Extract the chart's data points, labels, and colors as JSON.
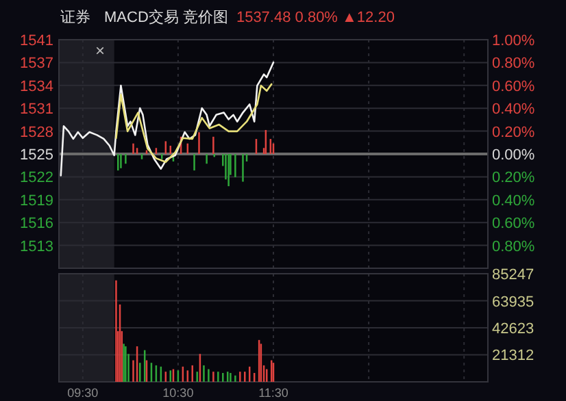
{
  "chart_data": [
    {
      "type": "line",
      "title": "证券",
      "subtitle": "MACD交易 竞价图",
      "annotations": [
        "1537.48 0.80% ▲12.20",
        "×"
      ],
      "xlim": [
        9.25,
        13.75
      ],
      "xticks": [
        9.5,
        10.5,
        11.5,
        12.5,
        13.5
      ],
      "tick_labels": "y",
      "ylim": [
        1510.03,
        1540.53
      ],
      "yticks": [
        {
          "value": 1540.53,
          "label": "1541"
        },
        {
          "value": 1537.48,
          "label": "1537"
        },
        {
          "value": 1534.43,
          "label": "1534"
        },
        {
          "value": 1531.38,
          "label": "1531"
        },
        {
          "value": 1528.33,
          "label": "1528"
        },
        {
          "value": 1525.28,
          "label": "1525"
        },
        {
          "value": 1522.23,
          "label": "1522"
        },
        {
          "value": 1519.18,
          "label": "1519"
        },
        {
          "value": 1516.13,
          "label": "1516"
        },
        {
          "value": 1513.08,
          "label": "1513"
        }
      ],
      "y2lim": [
        -1,
        1
      ],
      "y2ticks": [
        {
          "value": 1,
          "label": "1.00%"
        },
        {
          "value": 0.8,
          "label": "0.80%"
        },
        {
          "value": 0.6,
          "label": "0.60%"
        },
        {
          "value": 0.4,
          "label": "0.40%"
        },
        {
          "value": 0.2,
          "label": "0.20%"
        },
        {
          "value": 0,
          "label": "0.00%"
        },
        {
          "value": -0.2,
          "label": "0.20%"
        },
        {
          "value": -0.4,
          "label": "0.40%"
        },
        {
          "value": -0.6,
          "label": "0.60%"
        },
        {
          "value": -0.8,
          "label": "0.80%"
        }
      ],
      "grid": true,
      "ref_lines": [
        {
          "axis": "y",
          "value": 1525.28,
          "color": "#6b6b6b"
        }
      ],
      "bands": [
        {
          "axis": "x",
          "from": 9.25,
          "to": 9.83,
          "color": "#1d1d24"
        }
      ],
      "series": [
        {
          "type": "bar",
          "x": [
            9.87,
            9.9,
            9.95,
            10.03,
            10.07,
            10.12,
            10.17,
            10.27,
            10.33,
            10.37,
            10.42,
            10.45,
            10.53,
            10.6,
            10.67,
            10.72,
            10.8,
            10.87,
            10.88,
            10.97,
            11.0,
            11.03,
            11.05,
            11.1,
            11.18,
            11.22,
            11.32,
            11.4,
            11.42,
            11.47,
            11.5
          ],
          "base": [
            1525.28,
            1525.28,
            1525.28,
            1525.28,
            1525.28,
            1525.28,
            1525.28,
            1525.28,
            1525.28,
            1525.28,
            1525.28,
            1525.28,
            1525.28,
            1525.28,
            1525.28,
            1525.28,
            1525.28,
            1525.28,
            1525.28,
            1525.28,
            1525.28,
            1525.28,
            1525.28,
            1525.28,
            1525.28,
            1525.28,
            1525.28,
            1525.28,
            1525.28,
            1525.28,
            1525.28
          ],
          "values": [
            -2.2,
            -1.9,
            -1.3,
            1.4,
            0.8,
            -0.7,
            0.5,
            0.8,
            -0.7,
            1.7,
            1.1,
            -1.0,
            2.3,
            1.4,
            -2.2,
            2.9,
            -1.3,
            2.3,
            -0.4,
            -1.6,
            -3.4,
            -4.3,
            -2.8,
            -3.1,
            -3.7,
            -1.0,
            2.0,
            0.8,
            3.2,
            2.0,
            1.4
          ],
          "colors": [
            "#2fa83a",
            "#2fa83a",
            "#2fa83a",
            "#e0433f",
            "#e0433f",
            "#2fa83a",
            "#e0433f",
            "#e0433f",
            "#2fa83a",
            "#e0433f",
            "#e0433f",
            "#2fa83a",
            "#e0433f",
            "#e0433f",
            "#2fa83a",
            "#e0433f",
            "#2fa83a",
            "#e0433f",
            "#2fa83a",
            "#2fa83a",
            "#2fa83a",
            "#2fa83a",
            "#2fa83a",
            "#2fa83a",
            "#2fa83a",
            "#2fa83a",
            "#e0433f",
            "#e0433f",
            "#e0433f",
            "#e0433f",
            "#e0433f"
          ]
        },
        {
          "color": "#f2f2f2",
          "x": [
            9.27,
            9.3,
            9.35,
            9.4,
            9.45,
            9.5,
            9.57,
            9.65,
            9.72,
            9.78,
            9.83,
            9.85,
            9.9,
            9.97,
            10.0,
            10.05,
            10.1,
            10.13,
            10.18,
            10.25,
            10.32,
            10.38,
            10.47,
            10.5,
            10.57,
            10.62,
            10.68,
            10.75,
            10.8,
            10.83,
            10.9,
            10.98,
            11.03,
            11.08,
            11.12,
            11.18,
            11.25,
            11.3,
            11.33,
            11.4,
            11.43,
            11.5
          ],
          "values": [
            1522.4,
            1529.0,
            1528.3,
            1527.3,
            1528.2,
            1527.4,
            1528.2,
            1527.8,
            1527.3,
            1526.4,
            1525.1,
            1528.3,
            1534.4,
            1529.0,
            1529.6,
            1527.8,
            1531.4,
            1530.5,
            1526.5,
            1524.6,
            1523.3,
            1524.6,
            1525.1,
            1526.0,
            1528.2,
            1527.3,
            1527.8,
            1531.4,
            1530.5,
            1529.0,
            1530.5,
            1530.8,
            1529.9,
            1530.5,
            1529.6,
            1530.8,
            1531.9,
            1529.6,
            1534.4,
            1535.9,
            1535.5,
            1537.5
          ]
        },
        {
          "color": "#e8e07a",
          "x": [
            9.85,
            9.9,
            9.97,
            10.08,
            10.18,
            10.27,
            10.37,
            10.47,
            10.55,
            10.65,
            10.75,
            10.83,
            10.93,
            11.03,
            11.12,
            11.22,
            11.33,
            11.37,
            11.43,
            11.48
          ],
          "values": [
            1527.4,
            1533.2,
            1528.3,
            1530.8,
            1526.0,
            1524.7,
            1524.2,
            1525.5,
            1527.4,
            1527.3,
            1530.1,
            1528.7,
            1529.2,
            1528.3,
            1528.3,
            1529.6,
            1531.9,
            1534.4,
            1533.7,
            1534.6
          ]
        }
      ]
    },
    {
      "type": "bar",
      "xlim": [
        9.25,
        13.75
      ],
      "xticks": [
        {
          "value": 9.5,
          "label": "09:30"
        },
        {
          "value": 10.5,
          "label": "10:30"
        },
        {
          "value": 11.5,
          "label": "11:30"
        },
        {
          "value": 12.5,
          "label": null
        },
        {
          "value": 13.5,
          "label": null
        }
      ],
      "y2lim": [
        0,
        85247
      ],
      "y2ticks": [
        85247,
        63935,
        42623,
        21312
      ],
      "grid": true,
      "bands": [
        {
          "axis": "x",
          "from": 9.25,
          "to": 9.83,
          "color": "#1d1d24"
        }
      ],
      "series": [
        {
          "axis": "y2",
          "x": [
            9.85,
            9.87,
            9.89,
            9.91,
            9.93,
            9.95,
            9.98,
            10.03,
            10.07,
            10.1,
            10.15,
            10.17,
            10.22,
            10.27,
            10.32,
            10.37,
            10.42,
            10.45,
            10.5,
            10.55,
            10.6,
            10.65,
            10.7,
            10.73,
            10.77,
            10.82,
            10.87,
            10.92,
            10.97,
            11.02,
            11.05,
            11.1,
            11.15,
            11.2,
            11.25,
            11.3,
            11.35,
            11.37,
            11.4,
            11.43,
            11.48,
            11.5
          ],
          "values": [
            80000,
            40000,
            61000,
            40000,
            30000,
            28000,
            22000,
            17000,
            28000,
            15000,
            25000,
            17000,
            15000,
            13000,
            12000,
            8000,
            9000,
            10000,
            9000,
            12000,
            9000,
            13000,
            8000,
            22000,
            13000,
            10000,
            8000,
            8000,
            7000,
            8000,
            7000,
            5000,
            8000,
            8000,
            12000,
            7000,
            33000,
            30000,
            13000,
            10000,
            17000,
            15000
          ],
          "colors": [
            "#e0433f",
            "#e0433f",
            "#e0433f",
            "#e0433f",
            "#2fa83a",
            "#2fa83a",
            "#2fa83a",
            "#e0433f",
            "#e0433f",
            "#2fa83a",
            "#2fa83a",
            "#e0433f",
            "#2fa83a",
            "#2fa83a",
            "#2fa83a",
            "#e0433f",
            "#2fa83a",
            "#e0433f",
            "#2fa83a",
            "#e0433f",
            "#e0433f",
            "#e0433f",
            "#2fa83a",
            "#e0433f",
            "#2fa83a",
            "#2fa83a",
            "#e0433f",
            "#2fa83a",
            "#2fa83a",
            "#2fa83a",
            "#2fa83a",
            "#2fa83a",
            "#e0433f",
            "#e0433f",
            "#e0433f",
            "#e0433f",
            "#e0433f",
            "#e0433f",
            "#e0433f",
            "#e0433f",
            "#e0433f",
            "#e0433f"
          ]
        }
      ]
    }
  ]
}
